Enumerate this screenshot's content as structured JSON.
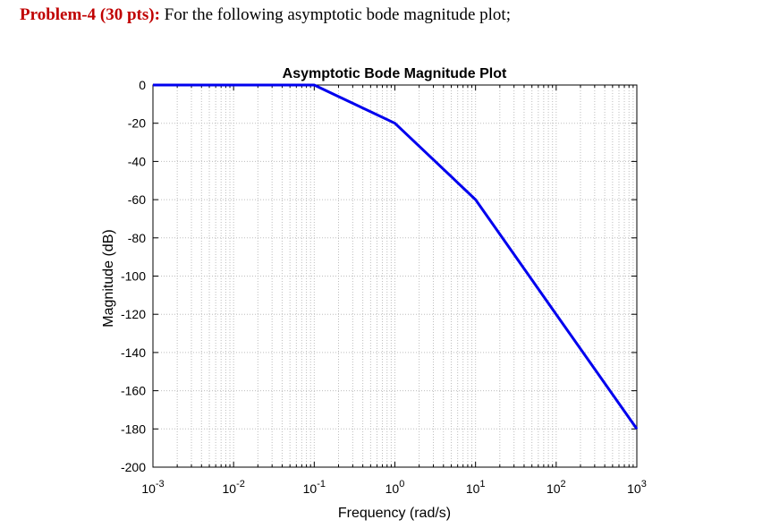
{
  "problem": {
    "label": "Problem-4 (30 pts):",
    "text": "For the following asymptotic bode magnitude plot;"
  },
  "chart_data": {
    "type": "line",
    "title": "Asymptotic Bode Magnitude Plot",
    "xlabel": "Frequency (rad/s)",
    "ylabel": "Magnitude (dB)",
    "xscale": "log",
    "xlim": [
      0.001,
      1000
    ],
    "ylim": [
      -200,
      0
    ],
    "x_ticks": [
      {
        "base": "10",
        "exp": "-3",
        "value": 0.001
      },
      {
        "base": "10",
        "exp": "-2",
        "value": 0.01
      },
      {
        "base": "10",
        "exp": "-1",
        "value": 0.1
      },
      {
        "base": "10",
        "exp": "0",
        "value": 1
      },
      {
        "base": "10",
        "exp": "1",
        "value": 10
      },
      {
        "base": "10",
        "exp": "2",
        "value": 100
      },
      {
        "base": "10",
        "exp": "3",
        "value": 1000
      }
    ],
    "y_ticks": [
      0,
      -20,
      -40,
      -60,
      -80,
      -100,
      -120,
      -140,
      -160,
      -180,
      -200
    ],
    "grid": true,
    "series": [
      {
        "color": "#0000ee",
        "x": [
          0.001,
          0.01,
          0.1,
          1,
          10,
          100,
          1000
        ],
        "y": [
          0,
          0,
          0,
          -20,
          -60,
          -120,
          -180
        ]
      }
    ]
  }
}
